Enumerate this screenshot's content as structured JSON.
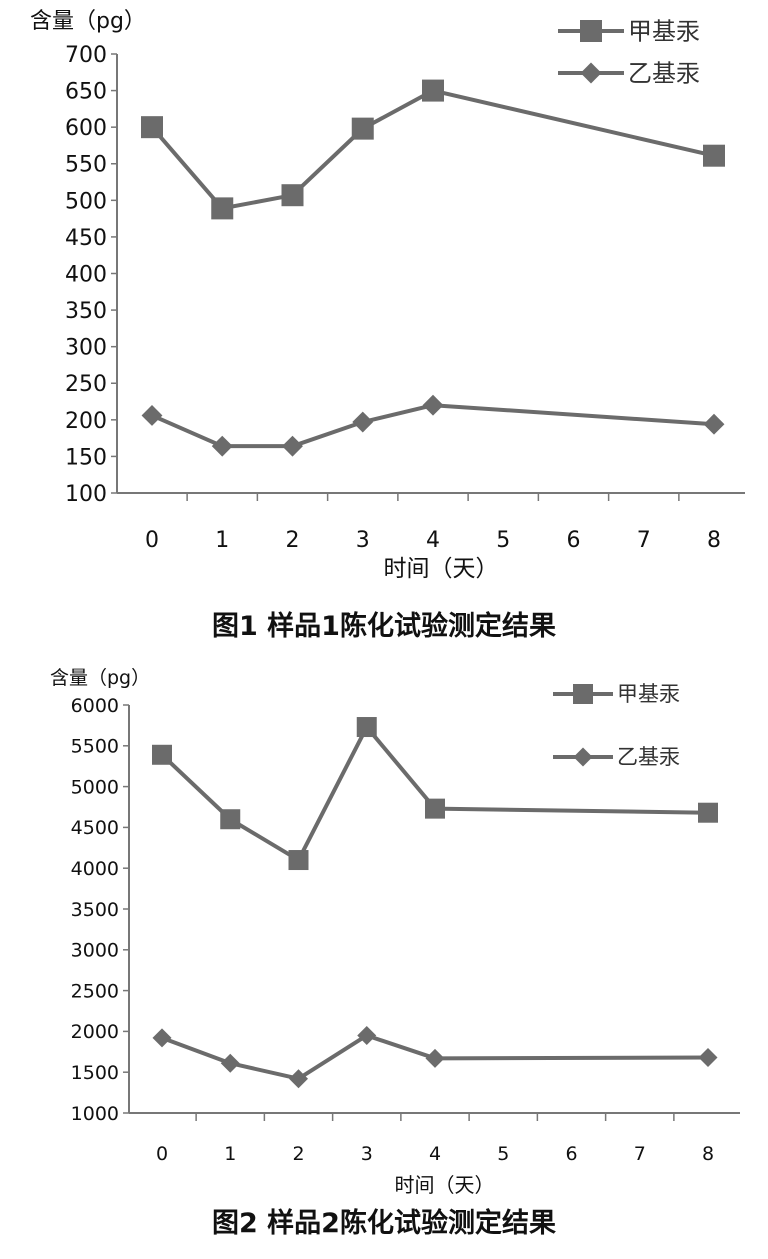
{
  "chart_data": [
    {
      "type": "line",
      "ylabel": "含量（pg）",
      "xlabel": "时间（天）",
      "caption": "图1 样品1陈化试验测定结果",
      "categories": [
        "0",
        "1",
        "2",
        "3",
        "4",
        "5",
        "6",
        "7",
        "8"
      ],
      "ylim": [
        100,
        700
      ],
      "yticks": [
        100,
        150,
        200,
        250,
        300,
        350,
        400,
        450,
        500,
        550,
        600,
        650,
        700
      ],
      "series": [
        {
          "name": "甲基汞",
          "marker": "square",
          "x": [
            0,
            1,
            2,
            3,
            4,
            8
          ],
          "values": [
            600,
            489,
            507,
            598,
            650,
            561
          ]
        },
        {
          "name": "乙基汞",
          "marker": "diamond",
          "x": [
            0,
            1,
            2,
            3,
            4,
            8
          ],
          "values": [
            206,
            164,
            164,
            197,
            220,
            194
          ]
        }
      ],
      "legend": "top-right",
      "grid": false,
      "colors": {
        "series": "#6b6b6b",
        "axis": "#777777"
      }
    },
    {
      "type": "line",
      "ylabel": "含量（pg）",
      "xlabel": "时间（天）",
      "caption": "图2 样品2陈化试验测定结果",
      "categories": [
        "0",
        "1",
        "2",
        "3",
        "4",
        "5",
        "6",
        "7",
        "8"
      ],
      "ylim": [
        1000,
        6000
      ],
      "yticks": [
        1000,
        1500,
        2000,
        2500,
        3000,
        3500,
        4000,
        4500,
        5000,
        5500,
        6000
      ],
      "series": [
        {
          "name": "甲基汞",
          "marker": "square",
          "x": [
            0,
            1,
            2,
            3,
            4,
            8
          ],
          "values": [
            5390,
            4600,
            4100,
            5730,
            4730,
            4680
          ]
        },
        {
          "name": "乙基汞",
          "marker": "diamond",
          "x": [
            0,
            1,
            2,
            3,
            4,
            8
          ],
          "values": [
            1920,
            1610,
            1420,
            1950,
            1670,
            1680
          ]
        }
      ],
      "legend": "top-right",
      "grid": false,
      "colors": {
        "series": "#6b6b6b",
        "axis": "#777777"
      }
    }
  ]
}
